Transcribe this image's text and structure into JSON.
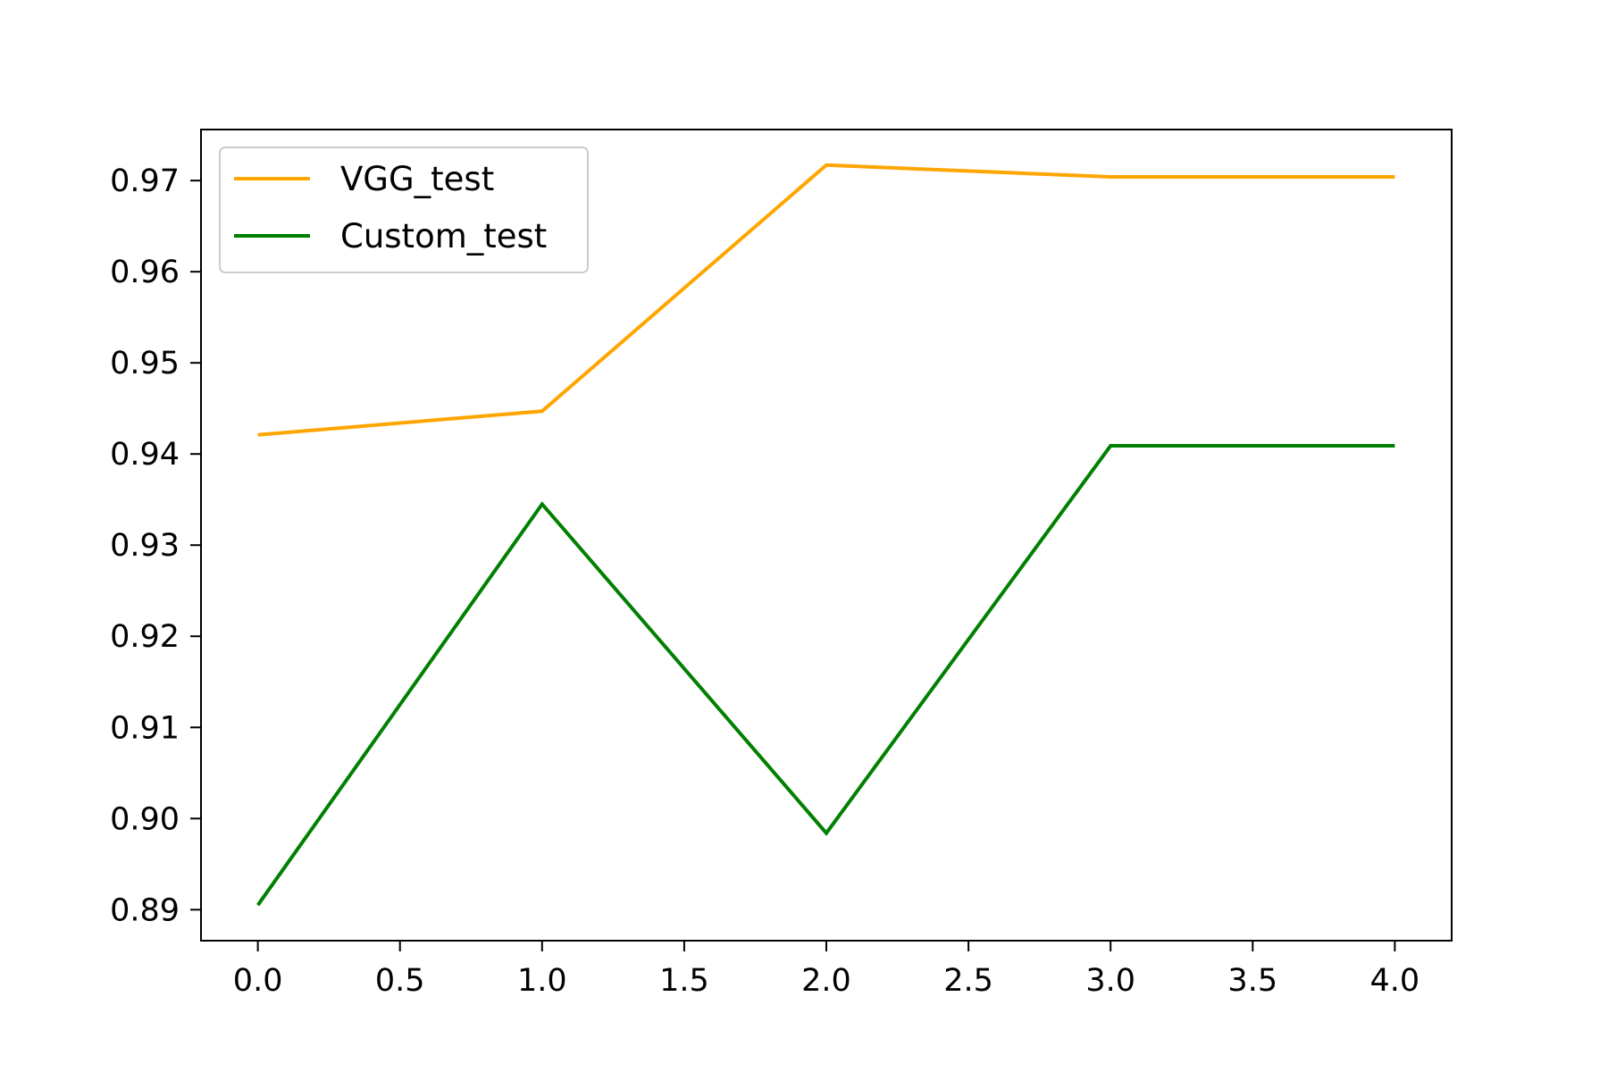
{
  "chart_data": {
    "type": "line",
    "title": "",
    "xlabel": "",
    "ylabel": "",
    "x": [
      0,
      1,
      2,
      3,
      4
    ],
    "xlim": [
      -0.2,
      4.2
    ],
    "ylim": [
      0.8866,
      0.9756
    ],
    "x_ticks": [
      0.0,
      0.5,
      1.0,
      1.5,
      2.0,
      2.5,
      3.0,
      3.5,
      4.0
    ],
    "x_tick_labels": [
      "0.0",
      "0.5",
      "1.0",
      "1.5",
      "2.0",
      "2.5",
      "3.0",
      "3.5",
      "4.0"
    ],
    "y_ticks": [
      0.89,
      0.9,
      0.91,
      0.92,
      0.93,
      0.94,
      0.95,
      0.96,
      0.97
    ],
    "y_tick_labels": [
      "0.89",
      "0.90",
      "0.91",
      "0.92",
      "0.93",
      "0.94",
      "0.95",
      "0.96",
      "0.97"
    ],
    "grid": false,
    "legend_position": "top-left",
    "series": [
      {
        "name": "VGG_test",
        "color": "#ffa500",
        "values": [
          0.9421,
          0.9447,
          0.9717,
          0.9704,
          0.9704
        ]
      },
      {
        "name": "Custom_test",
        "color": "#008000",
        "values": [
          0.8905,
          0.9345,
          0.8984,
          0.9409,
          0.9409
        ]
      }
    ]
  }
}
